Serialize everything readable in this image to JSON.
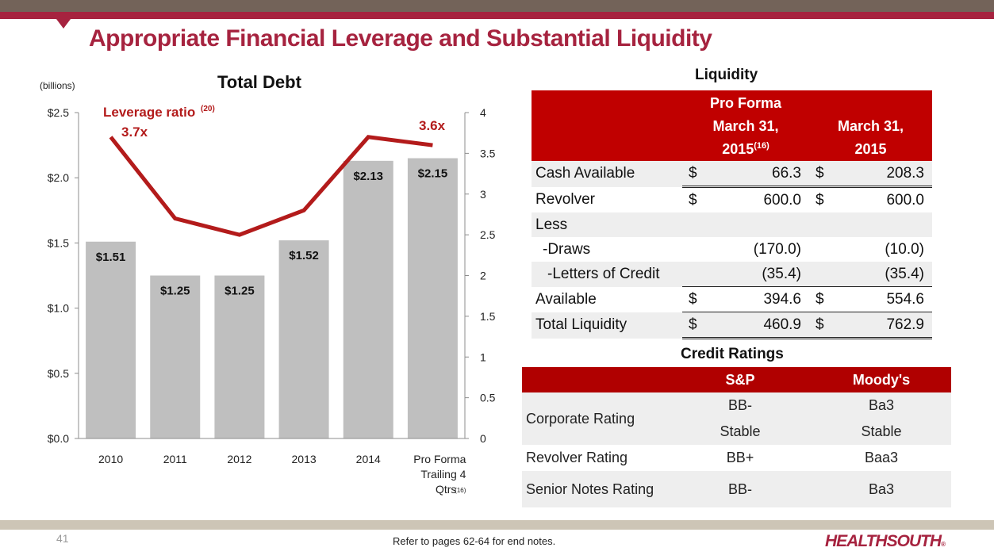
{
  "header": {
    "title": "Appropriate Financial Leverage and Substantial Liquidity",
    "colors": {
      "top_bar": "#736359",
      "accent": "#a6233f"
    }
  },
  "chart_data": {
    "type": "bar",
    "title": "Total Debt",
    "units_label": "(billions)",
    "categories": [
      "2010",
      "2011",
      "2012",
      "2013",
      "2014",
      "Pro Forma Trailing 4 Qtrs(16)"
    ],
    "category_lines": [
      [
        "2010"
      ],
      [
        "2011"
      ],
      [
        "2012"
      ],
      [
        "2013"
      ],
      [
        "2014"
      ],
      [
        "Pro Forma",
        "Trailing 4",
        "Qtrs"
      ]
    ],
    "category_superscript": [
      "",
      "",
      "",
      "",
      "",
      "(16)"
    ],
    "series": [
      {
        "name": "Total Debt",
        "type": "bar",
        "axis": "left",
        "values": [
          1.51,
          1.25,
          1.25,
          1.52,
          2.13,
          2.15
        ],
        "data_labels": [
          "$1.51",
          "$1.25",
          "$1.25",
          "$1.52",
          "$2.13",
          "$2.15"
        ],
        "color": "#bfbfbf"
      },
      {
        "name": "Leverage ratio(20)",
        "type": "line",
        "axis": "right",
        "values": [
          3.7,
          2.7,
          2.5,
          2.8,
          3.7,
          3.6
        ],
        "color": "#b31b1b"
      }
    ],
    "annotations": [
      {
        "text": "Leverage ratio",
        "superscript": "(20)"
      },
      {
        "text": "3.7x",
        "category_index": 0
      },
      {
        "text": "3.6x",
        "category_index": 5
      }
    ],
    "left_axis": {
      "ylim": [
        0,
        2.5
      ],
      "ticks": [
        0,
        0.5,
        1.0,
        1.5,
        2.0,
        2.5
      ],
      "tick_labels": [
        "$0.0",
        "$0.5",
        "$1.0",
        "$1.5",
        "$2.0",
        "$2.5"
      ]
    },
    "right_axis": {
      "ylim": [
        0,
        4
      ],
      "ticks": [
        0,
        0.5,
        1,
        1.5,
        2,
        2.5,
        3,
        3.5,
        4
      ],
      "tick_labels": [
        "0",
        "0.5",
        "1",
        "1.5",
        "2",
        "2.5",
        "3",
        "3.5",
        "4"
      ]
    },
    "xlabel": "",
    "ylabel": "",
    "grid": false,
    "legend": "none"
  },
  "liquidity": {
    "title": "Liquidity",
    "header": {
      "col1_lines": [
        "Pro Forma",
        "March 31,",
        "2015"
      ],
      "col1_sup": "(16)",
      "col2_lines": [
        "March 31,",
        "2015"
      ]
    },
    "rows": [
      {
        "label": "Cash Available",
        "c1_dollar": "$",
        "c1": "66.3",
        "c2_dollar": "$",
        "c2": "208.3"
      },
      {
        "label": "Revolver",
        "c1_dollar": "$",
        "c1": "600.0",
        "c2_dollar": "$",
        "c2": "600.0"
      },
      {
        "label": "Less",
        "c1_dollar": "",
        "c1": "",
        "c2_dollar": "",
        "c2": ""
      },
      {
        "label": "-Draws",
        "c1_dollar": "",
        "c1": "(170.0)",
        "c2_dollar": "",
        "c2": "(10.0)"
      },
      {
        "label": "-Letters of Credit",
        "c1_dollar": "",
        "c1": "(35.4)",
        "c2_dollar": "",
        "c2": "(35.4)"
      },
      {
        "label": "Available",
        "c1_dollar": "$",
        "c1": "394.6",
        "c2_dollar": "$",
        "c2": "554.6"
      },
      {
        "label": "Total Liquidity",
        "c1_dollar": "$",
        "c1": "460.9",
        "c2_dollar": "$",
        "c2": "762.9"
      }
    ]
  },
  "credit_ratings": {
    "title": "Credit Ratings",
    "columns": [
      "",
      "S&P",
      "Moody's"
    ],
    "rows": [
      {
        "label": "Corporate Rating",
        "sp": "BB-",
        "moodys": "Ba3",
        "sp_outlook": "Stable",
        "moodys_outlook": "Stable"
      },
      {
        "label": "Revolver Rating",
        "sp": "BB+",
        "moodys": "Baa3"
      },
      {
        "label": "Senior Notes Rating",
        "sp": "BB-",
        "moodys": "Ba3"
      }
    ]
  },
  "footer": {
    "page_number": "41",
    "endnote": "Refer to pages 62-64 for end notes.",
    "logo": "HEALTHSOUTH",
    "logo_mark": "®"
  }
}
